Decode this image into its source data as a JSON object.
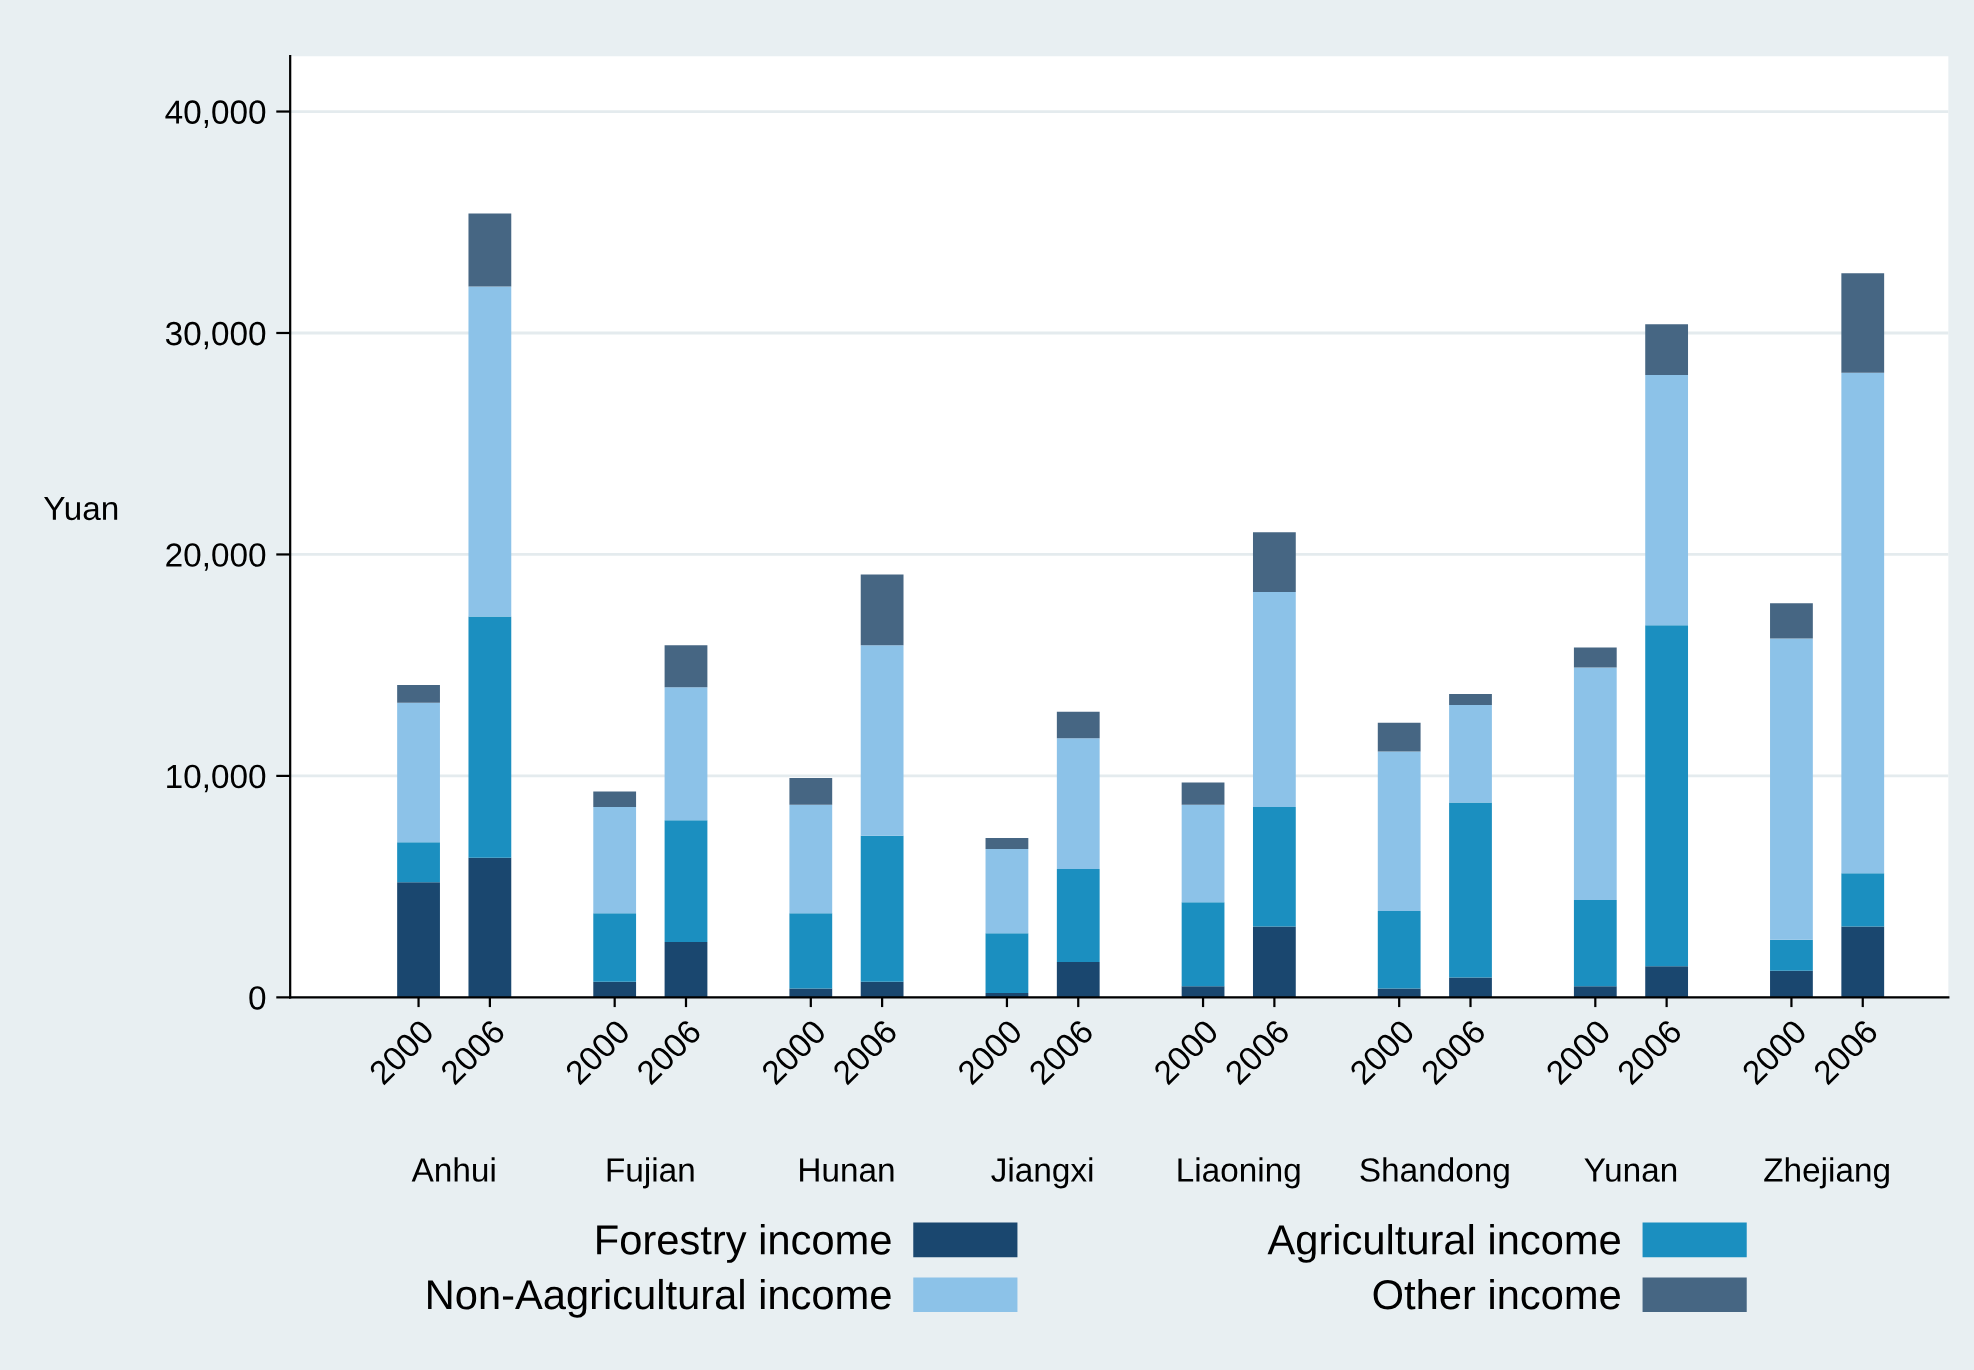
{
  "chart_data": {
    "type": "bar",
    "stacked": true,
    "ylabel": "Yuan",
    "categories": [
      "2000",
      "2006",
      "2000",
      "2006",
      "2000",
      "2006",
      "2000",
      "2006",
      "2000",
      "2006",
      "2000",
      "2006",
      "2000",
      "2006",
      "2000",
      "2006"
    ],
    "series": [
      {
        "name": "Forestry income",
        "color": "#1a476f",
        "values": [
          5200,
          6300,
          700,
          2500,
          400,
          700,
          200,
          1600,
          500,
          3200,
          400,
          900,
          500,
          1400,
          1200,
          3200
        ]
      },
      {
        "name": "Agricultural income",
        "color": "#1b8fc0",
        "values": [
          1800,
          10900,
          3100,
          5500,
          3400,
          6600,
          2700,
          4200,
          3800,
          5400,
          3500,
          7900,
          3900,
          15400,
          1400,
          2400
        ]
      },
      {
        "name": "Non-Aagricultural income",
        "color": "#8cc2e8",
        "values": [
          6300,
          14900,
          4800,
          6000,
          4900,
          8600,
          3800,
          5900,
          4400,
          9700,
          7200,
          4400,
          10500,
          11300,
          13600,
          22600
        ]
      },
      {
        "name": "Other income",
        "color": "#466683",
        "values": [
          800,
          3300,
          700,
          1900,
          1200,
          3200,
          500,
          1200,
          1000,
          2700,
          1300,
          500,
          900,
          2300,
          1600,
          4500
        ]
      }
    ],
    "ylim": [
      0,
      42500
    ],
    "yticks": [
      0,
      {
        "value": 10000,
        "label": "10,000"
      },
      {
        "value": 20000,
        "label": "20,000"
      },
      {
        "value": 30000,
        "label": "30,000"
      },
      {
        "value": 40000,
        "label": "40,000"
      }
    ],
    "grid": "y",
    "legend": "bottom",
    "annotations": [
      "Anhui",
      "Fujian",
      "Hunan",
      "Jiangxi",
      "Liaoning",
      "Shandong",
      "Yunan",
      "Zhejiang"
    ]
  }
}
